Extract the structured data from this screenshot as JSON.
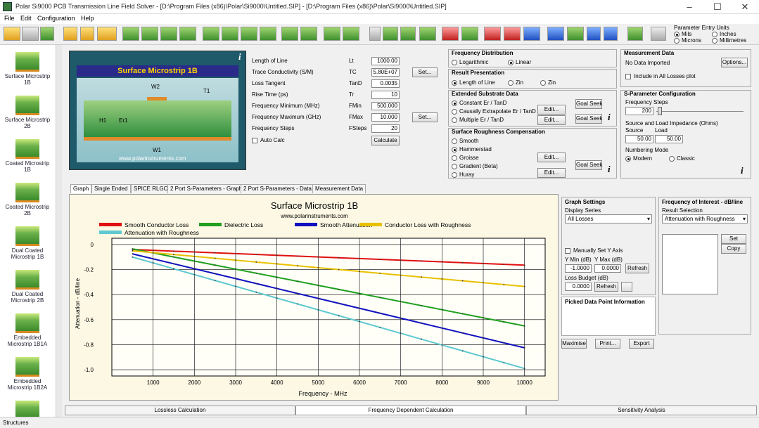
{
  "window": {
    "title": "Polar Si9000 PCB Transmission Line Field Solver - [D:\\Program Files (x86)\\Polar\\Si9000\\Untitled.SIP] - [D:\\Program Files (x86)\\Polar\\Si9000\\Untitled.SIP]"
  },
  "menu": [
    "File",
    "Edit",
    "Configuration",
    "Help"
  ],
  "param_units": {
    "title": "Parameter Entry Units",
    "mils": "Mils",
    "inches": "Inches",
    "microns": "Microns",
    "millimetres": "Millimetres"
  },
  "sidebar": {
    "items": [
      "Surface Microstrip 1B",
      "Surface Microstrip 2B",
      "Coated Microstrip 1B",
      "Coated Microstrip 2B",
      "Dual Coated Microstrip 1B",
      "Dual Coated Microstrip 2B",
      "Embedded Microstrip 1B1A",
      "Embedded Microstrip 1B2A"
    ],
    "footer": "Structures"
  },
  "diagram": {
    "title": "Surface Microstrip 1B",
    "url": "www.polarinstruments.com",
    "labels": {
      "w2": "W2",
      "t1": "T1",
      "h1": "H1",
      "er1": "Er1",
      "w1": "W1"
    }
  },
  "params": {
    "rows": [
      {
        "label": "Length of Line",
        "sym": "Lt",
        "value": "1000.00"
      },
      {
        "label": "Trace Conductivity (S/M)",
        "sym": "TC",
        "value": "5.80E+07"
      },
      {
        "label": "Loss Tangent",
        "sym": "TanD",
        "value": "0.0035"
      },
      {
        "label": "Rise Time (ps)",
        "sym": "Tr",
        "value": "10"
      },
      {
        "label": "Frequency Minimum (MHz)",
        "sym": "FMin",
        "value": "500.000"
      },
      {
        "label": "Frequency Maximum (GHz)",
        "sym": "FMax",
        "value": "10.000"
      },
      {
        "label": "Frequency Steps",
        "sym": "FSteps",
        "value": "20"
      }
    ],
    "set": "Set...",
    "autocalc": "Auto Calc",
    "calculate": "Calculate"
  },
  "freq_dist": {
    "title": "Frequency Distribution",
    "log": "Logarithmic",
    "lin": "Linear"
  },
  "result_pres": {
    "title": "Result Presentation",
    "a": "Length of Line",
    "b": "Zin",
    "c": "Zin"
  },
  "ext_sub": {
    "title": "Extended Substrate Data",
    "a": "Constant Er / TanD",
    "b": "Causally Extrapolate Er / TanD",
    "c": "Multiple Er / TanD",
    "edit": "Edit...",
    "goalseek": "Goal Seek"
  },
  "rough": {
    "title": "Surface Roughness Compensation",
    "items": [
      "Smooth",
      "Hammerstad",
      "Groisse",
      "Gradient (Beta)",
      "Huray"
    ],
    "edit": "Edit...",
    "goalseek": "Goal Seek"
  },
  "meas": {
    "title": "Measurement Data",
    "status": "No Data Imported",
    "options": "Options...",
    "include": "Include in All Losses plot"
  },
  "spar": {
    "title": "S-Parameter Configuration",
    "freqsteps": "Frequency Steps",
    "steps": "200",
    "load": "Source and Load Impedance (Ohms)",
    "source": "Source",
    "loadl": "Load",
    "src_v": "50.00",
    "load_v": "50.00",
    "numbering": "Numbering Mode",
    "modern": "Modern",
    "classic": "Classic"
  },
  "tabs": [
    "Graph",
    "Single Ended",
    "SPICE RLGC",
    "2 Port S-Parameters - Graph",
    "2 Port S-Parameters - Data",
    "Measurement Data"
  ],
  "graph_settings": {
    "title": "Graph Settings",
    "display": "Display Series",
    "series": "All Losses",
    "manual": "Manually Set Y Axis",
    "ymin": "Y Min (dB)",
    "ymax": "Y Max (dB)",
    "ymin_v": "-1.0000",
    "ymax_v": "0.0000",
    "refresh": "Refresh",
    "budget": "Loss Budget (dB)",
    "budget_v": "0.0000",
    "refresh2": "Refresh",
    "picked": "Picked Data Point Information",
    "maximise": "Maximise",
    "print": "Print...",
    "export": "Export"
  },
  "foi": {
    "title": "Frequency of Interest - dB/line",
    "result": "Result Selection",
    "sel": "Attenuation with Roughness",
    "set": "Set",
    "copy": "Copy"
  },
  "bottom_tabs": [
    "Lossless Calculation",
    "Frequency Dependent Calculation",
    "Sensitivity Analysis"
  ],
  "colors": {
    "red": "#e01010",
    "green": "#20a020",
    "blue": "#1010c0",
    "yellow": "#e8c000",
    "cyan": "#60c8d0"
  },
  "chart_data": {
    "type": "line",
    "title": "Surface Microstrip 1B",
    "subtitle": "www.polarinstruments.com",
    "xlabel": "Frequency - MHz",
    "ylabel": "Attenuation - dB/line",
    "xlim": [
      0,
      10500
    ],
    "ylim": [
      -1.05,
      0.05
    ],
    "xticks": [
      1000,
      2000,
      3000,
      4000,
      5000,
      6000,
      7000,
      8000,
      9000,
      10000
    ],
    "yticks": [
      0,
      -0.2,
      -0.4,
      -0.6,
      -0.8,
      -1.0
    ],
    "ytick_labels": [
      "0",
      "-0.2",
      "-0.4",
      "-0.6",
      "-0.8",
      "-1.0"
    ],
    "legend_position": "top",
    "series": [
      {
        "name": "Smooth Conductor Loss",
        "color": "#e01010",
        "x": [
          500,
          10000
        ],
        "y": [
          -0.04,
          -0.165
        ]
      },
      {
        "name": "Dielectric Loss",
        "color": "#20a020",
        "x": [
          500,
          10000
        ],
        "y": [
          -0.035,
          -0.65
        ]
      },
      {
        "name": "Smooth Attenuation",
        "color": "#1010c0",
        "x": [
          500,
          10000
        ],
        "y": [
          -0.075,
          -0.825
        ]
      },
      {
        "name": "Conductor Loss with Roughness",
        "color": "#e8c000",
        "x": [
          500,
          10000
        ],
        "y": [
          -0.05,
          -0.335
        ]
      },
      {
        "name": "Attenuation with Roughness",
        "color": "#60c8d0",
        "x": [
          500,
          10000
        ],
        "y": [
          -0.1,
          -0.99
        ]
      }
    ]
  }
}
